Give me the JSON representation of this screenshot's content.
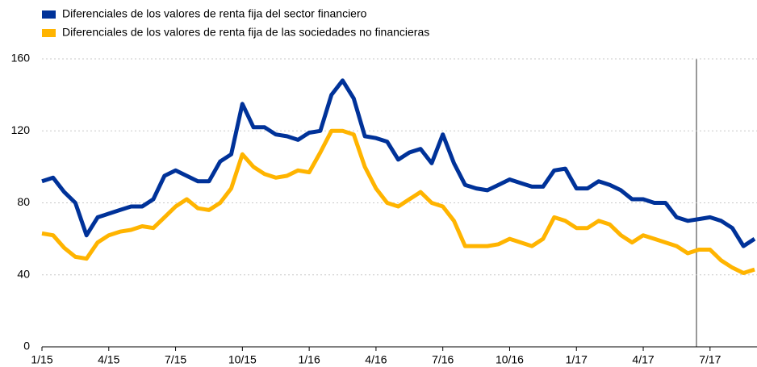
{
  "chart_data": {
    "type": "line",
    "categories": [
      "1/15",
      null,
      null,
      null,
      null,
      null,
      "4/15",
      null,
      null,
      null,
      null,
      null,
      "7/15",
      null,
      null,
      null,
      null,
      null,
      "10/15",
      null,
      null,
      null,
      null,
      null,
      "1/16",
      null,
      null,
      null,
      null,
      null,
      "4/16",
      null,
      null,
      null,
      null,
      null,
      "7/16",
      null,
      null,
      null,
      null,
      null,
      "10/16",
      null,
      null,
      null,
      null,
      null,
      "1/17",
      null,
      null,
      null,
      null,
      null,
      "4/17",
      null,
      null,
      null,
      null,
      null,
      "7/17",
      null,
      null,
      null,
      null
    ],
    "series": [
      {
        "name": "Diferenciales de los valores de renta fija del sector financiero",
        "color": "#003299",
        "values": [
          92,
          94,
          86,
          80,
          62,
          72,
          74,
          76,
          78,
          78,
          82,
          95,
          98,
          95,
          92,
          92,
          103,
          107,
          135,
          122,
          122,
          118,
          117,
          115,
          119,
          120,
          140,
          148,
          138,
          117,
          116,
          114,
          104,
          108,
          110,
          102,
          118,
          102,
          90,
          88,
          87,
          90,
          93,
          91,
          89,
          89,
          98,
          99,
          88,
          88,
          92,
          90,
          87,
          82,
          82,
          80,
          80,
          72,
          70,
          71,
          72,
          70,
          66,
          56,
          60
        ]
      },
      {
        "name": "Diferenciales de los valores de renta fija de las sociedades no financieras",
        "color": "#ffb400",
        "values": [
          63,
          62,
          55,
          50,
          49,
          58,
          62,
          64,
          65,
          67,
          66,
          72,
          78,
          82,
          77,
          76,
          80,
          88,
          107,
          100,
          96,
          94,
          95,
          98,
          97,
          108,
          120,
          120,
          118,
          100,
          88,
          80,
          78,
          82,
          86,
          80,
          78,
          70,
          56,
          56,
          56,
          57,
          60,
          58,
          56,
          60,
          72,
          70,
          66,
          66,
          70,
          68,
          62,
          58,
          62,
          60,
          58,
          56,
          52,
          54,
          54,
          48,
          44,
          41,
          43
        ]
      }
    ],
    "ylim": [
      0,
      160
    ],
    "yticks": [
      0,
      40,
      80,
      120,
      160
    ],
    "grid": true,
    "legend": "top-left"
  }
}
